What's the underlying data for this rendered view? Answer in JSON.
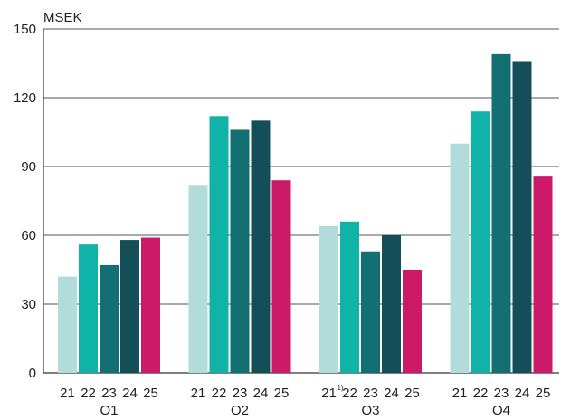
{
  "chart_data": {
    "type": "bar",
    "ylabel": "MSEK",
    "ylim": [
      0,
      150
    ],
    "yticks": [
      0,
      30,
      60,
      90,
      120,
      150
    ],
    "grid": true,
    "legend": "none",
    "groups": [
      {
        "label": "Q1",
        "years": [
          "21",
          "22",
          "23",
          "24",
          "25"
        ],
        "values": [
          42,
          56,
          47,
          58,
          59
        ]
      },
      {
        "label": "Q2",
        "years": [
          "21",
          "22",
          "23",
          "24",
          "25"
        ],
        "values": [
          82,
          112,
          106,
          110,
          84
        ]
      },
      {
        "label": "Q3",
        "years": [
          "21",
          "22",
          "23",
          "24",
          "25"
        ],
        "year_footnotes": [
          "1)",
          "",
          "",
          "",
          ""
        ],
        "values": [
          64,
          66,
          53,
          60,
          45
        ]
      },
      {
        "label": "Q4",
        "years": [
          "21",
          "22",
          "23",
          "24",
          "25"
        ],
        "values": [
          100,
          114,
          139,
          136,
          86
        ]
      }
    ],
    "colors": [
      "#b2dcd9",
      "#10b3a8",
      "#127073",
      "#144f59",
      "#cc1a68"
    ]
  }
}
